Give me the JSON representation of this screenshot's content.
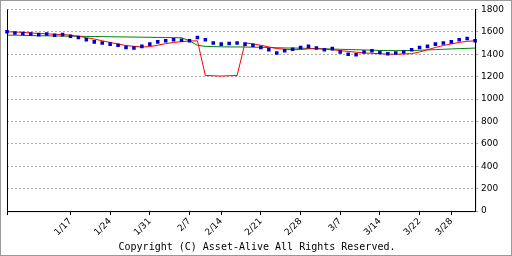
{
  "chart_data": {
    "type": "line",
    "annotations": [
      "Copyright (C) Asset-Alive All Rights Reserved."
    ],
    "categories": [
      null,
      null,
      null,
      null,
      null,
      null,
      null,
      null,
      "1/17",
      null,
      null,
      null,
      null,
      "1/24",
      null,
      null,
      null,
      null,
      "1/31",
      null,
      null,
      null,
      null,
      "2/7",
      null,
      null,
      null,
      "2/14",
      null,
      null,
      null,
      null,
      "2/21",
      null,
      null,
      null,
      null,
      "2/28",
      null,
      null,
      null,
      null,
      "3/7",
      null,
      null,
      null,
      null,
      "3/14",
      null,
      null,
      null,
      null,
      "3/22",
      null,
      null,
      null,
      "3/28",
      null,
      null,
      null
    ],
    "series": [
      {
        "type": "scatter",
        "marker": "square",
        "line_style": "none",
        "color": "#0000cc",
        "values": [
          1600,
          1590,
          1585,
          1580,
          1575,
          1580,
          1570,
          1575,
          1560,
          1550,
          1530,
          1510,
          1500,
          1490,
          1480,
          1460,
          1455,
          1470,
          1490,
          1510,
          1520,
          1530,
          1525,
          1520,
          1550,
          1530,
          1500,
          1490,
          1495,
          1500,
          1490,
          1480,
          1460,
          1440,
          1410,
          1430,
          1445,
          1460,
          1470,
          1455,
          1440,
          1450,
          1420,
          1400,
          1395,
          1420,
          1430,
          1415,
          1405,
          1410,
          1420,
          1440,
          1460,
          1470,
          1490,
          1500,
          1510,
          1530,
          1540,
          1520
        ]
      },
      {
        "type": "line",
        "marker": "none",
        "line_style": "solid",
        "color": "#ff0000",
        "values": [
          1600,
          1598,
          1595,
          1590,
          1585,
          1582,
          1578,
          1575,
          1570,
          1560,
          1548,
          1535,
          1520,
          1505,
          1490,
          1478,
          1470,
          1465,
          1468,
          1480,
          1495,
          1505,
          1512,
          1518,
          1520,
          1210,
          1208,
          1205,
          1208,
          1210,
          1500,
          1492,
          1480,
          1465,
          1450,
          1445,
          1440,
          1442,
          1448,
          1450,
          1445,
          1440,
          1432,
          1425,
          1418,
          1412,
          1408,
          1405,
          1400,
          1400,
          1402,
          1405,
          1420,
          1440,
          1460,
          1478,
          1492,
          1505,
          1515,
          1520
        ]
      },
      {
        "type": "line",
        "marker": "none",
        "line_style": "solid",
        "color": "#008000",
        "values": [
          1570,
          1570,
          1568,
          1566,
          1565,
          1564,
          1563,
          1562,
          1561,
          1560,
          1559,
          1558,
          1557,
          1556,
          1555,
          1554,
          1553,
          1552,
          1551,
          1550,
          1549,
          1548,
          1547,
          1520,
          1480,
          1470,
          1468,
          1466,
          1465,
          1465,
          1464,
          1463,
          1462,
          1460,
          1458,
          1456,
          1455,
          1454,
          1452,
          1450,
          1448,
          1446,
          1444,
          1442,
          1440,
          1438,
          1436,
          1434,
          1433,
          1432,
          1432,
          1433,
          1435,
          1438,
          1441,
          1444,
          1447,
          1450,
          1452,
          1455
        ]
      }
    ],
    "ylim": [
      0,
      1800
    ],
    "yticks": [
      0,
      200,
      400,
      600,
      800,
      1000,
      1200,
      1400,
      1600,
      1800
    ],
    "grid": true
  }
}
